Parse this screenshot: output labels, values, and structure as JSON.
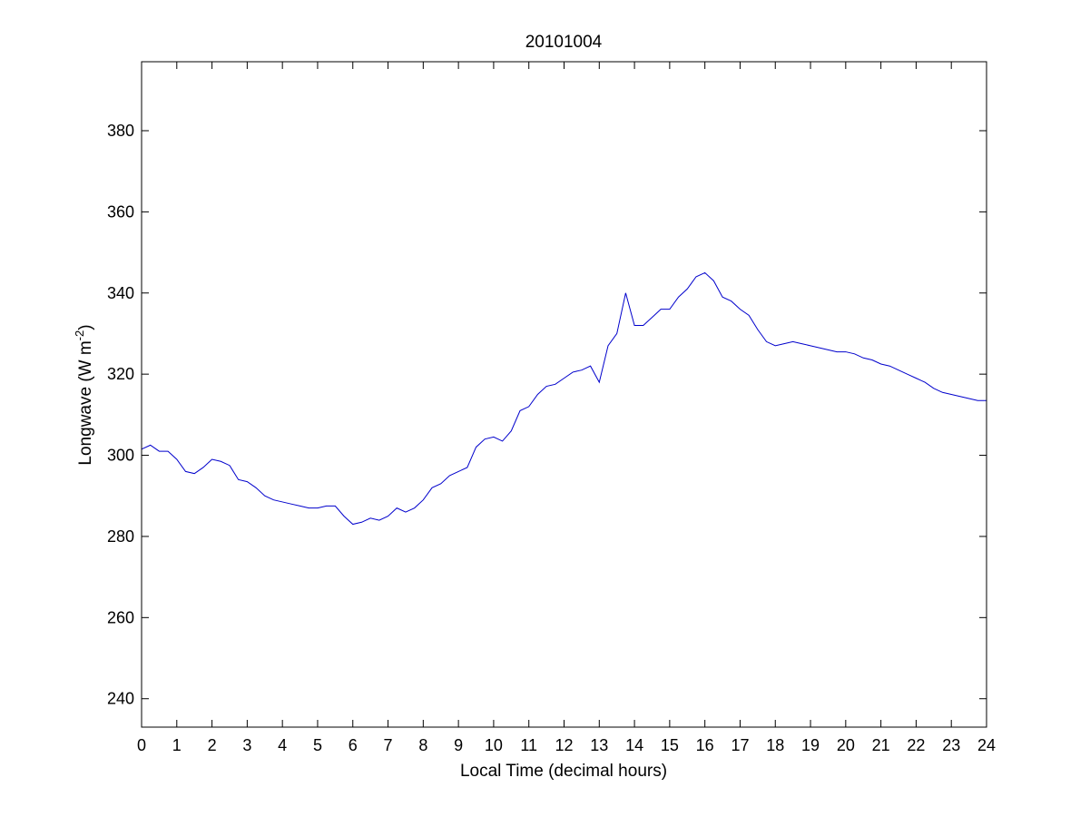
{
  "chart_data": {
    "type": "line",
    "title": "20101004",
    "xlabel": "Local Time (decimal hours)",
    "ylabel": {
      "base": "Longwave (W m",
      "superscript": "-2",
      "suffix": ")"
    },
    "xlim": [
      0,
      24
    ],
    "ylim": [
      233,
      397
    ],
    "xticks": [
      0,
      1,
      2,
      3,
      4,
      5,
      6,
      7,
      8,
      9,
      10,
      11,
      12,
      13,
      14,
      15,
      16,
      17,
      18,
      19,
      20,
      21,
      22,
      23,
      24
    ],
    "yticks": [
      240,
      260,
      280,
      300,
      320,
      340,
      360,
      380
    ],
    "grid": false,
    "line_color": "#0000cc",
    "series": [
      {
        "x": [
          0,
          0.25,
          0.5,
          0.75,
          1.0,
          1.25,
          1.5,
          1.75,
          2.0,
          2.25,
          2.5,
          2.75,
          3.0,
          3.25,
          3.5,
          3.75,
          4.0,
          4.25,
          4.5,
          4.75,
          5.0,
          5.25,
          5.5,
          5.75,
          6.0,
          6.25,
          6.5,
          6.75,
          7.0,
          7.25,
          7.5,
          7.75,
          8.0,
          8.25,
          8.5,
          8.75,
          9.0,
          9.25,
          9.5,
          9.75,
          10.0,
          10.25,
          10.5,
          10.75,
          11.0,
          11.25,
          11.5,
          11.75,
          12.0,
          12.25,
          12.5,
          12.75,
          13.0,
          13.25,
          13.5,
          13.75,
          14.0,
          14.25,
          14.5,
          14.75,
          15.0,
          15.25,
          15.5,
          15.75,
          16.0,
          16.25,
          16.5,
          16.75,
          17.0,
          17.25,
          17.5,
          17.75,
          18.0,
          18.25,
          18.5,
          18.75,
          19.0,
          19.25,
          19.5,
          19.75,
          20.0,
          20.25,
          20.5,
          20.75,
          21.0,
          21.25,
          21.5,
          21.75,
          22.0,
          22.25,
          22.5,
          22.75,
          23.0,
          23.25,
          23.5,
          23.75,
          24.0
        ],
        "y": [
          301.5,
          302.5,
          301,
          301,
          299,
          296,
          295.5,
          297,
          299,
          298.5,
          297.5,
          294,
          293.5,
          292,
          290,
          289,
          288.5,
          288,
          287.5,
          287,
          287,
          287.5,
          287.5,
          285,
          283,
          283.5,
          284.5,
          284,
          285,
          287,
          286,
          287,
          289,
          292,
          293,
          295,
          296,
          297,
          302,
          304,
          304.5,
          303.5,
          306,
          311,
          312,
          315,
          317,
          317.5,
          319,
          320.5,
          321,
          322,
          318,
          327,
          330,
          340,
          332,
          332,
          334,
          336,
          336,
          339,
          341,
          344,
          345,
          343,
          339,
          338,
          336,
          334.5,
          331,
          328,
          327,
          327.5,
          328,
          327.5,
          327,
          326.5,
          326,
          325.5,
          325.5,
          325,
          324,
          323.5,
          322.5,
          322,
          321,
          320,
          319,
          318,
          316.5,
          315.5,
          315,
          314.5,
          314,
          313.5,
          313.5
        ]
      }
    ]
  }
}
